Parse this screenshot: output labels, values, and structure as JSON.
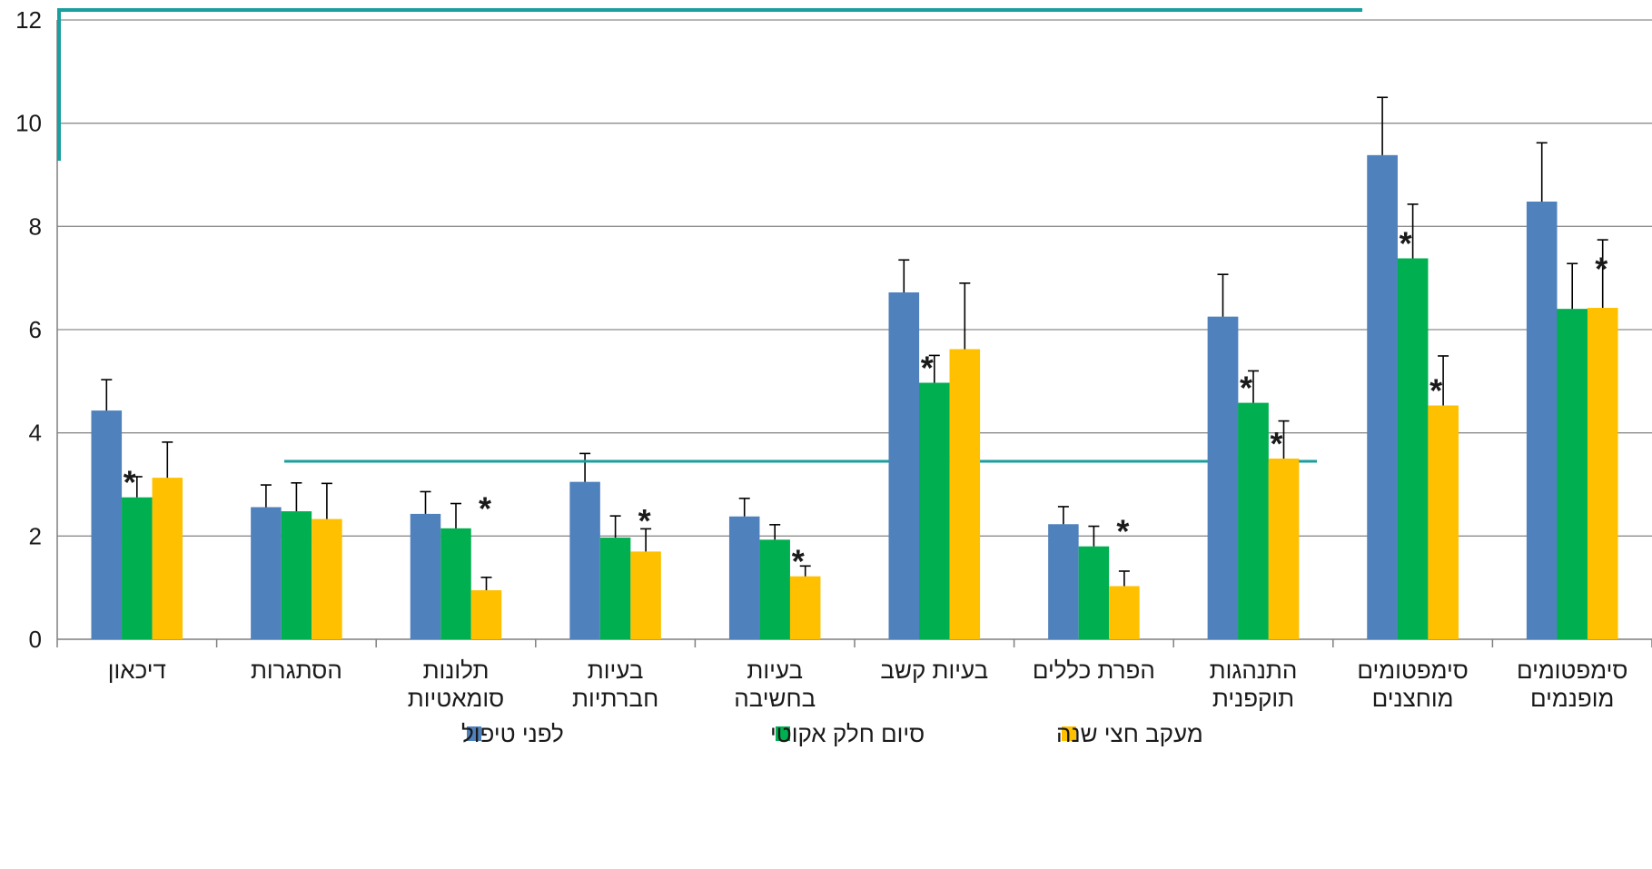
{
  "chart_data": {
    "type": "bar",
    "direction": "rtl",
    "ylim": [
      0,
      12
    ],
    "yticks": [
      0,
      2,
      4,
      6,
      8,
      10,
      12
    ],
    "grid": true,
    "legend_position": "bottom",
    "categories": [
      [
        "דיכאון"
      ],
      [
        "הסתגרות"
      ],
      [
        "תלונות",
        "סומאטיות"
      ],
      [
        "בעיות",
        "חברתיות"
      ],
      [
        "בעיות",
        "בחשיבה"
      ],
      [
        "בעיות קשב"
      ],
      [
        "הפרת כללים"
      ],
      [
        "התנהגות",
        "תוקפנית"
      ],
      [
        "סימפטומים",
        "מוחצנים"
      ],
      [
        "סימפטומים",
        "מופנמים"
      ]
    ],
    "series": [
      {
        "name": "לפני טיפול",
        "color": "#4F81BD",
        "values": [
          4.43,
          2.56,
          2.43,
          3.05,
          2.38,
          6.72,
          2.23,
          6.25,
          9.38,
          8.48
        ],
        "error": [
          0.6,
          0.43,
          0.43,
          0.55,
          0.35,
          0.63,
          0.34,
          0.82,
          1.12,
          1.14
        ],
        "stars": [
          false,
          false,
          false,
          false,
          false,
          false,
          false,
          false,
          false,
          false
        ]
      },
      {
        "name": "סיום חלק אקוטי",
        "color": "#00B050",
        "values": [
          2.75,
          2.48,
          2.15,
          1.97,
          1.93,
          4.97,
          1.8,
          4.58,
          7.38,
          6.4
        ],
        "error": [
          0.4,
          0.55,
          0.48,
          0.42,
          0.29,
          0.53,
          0.39,
          0.62,
          1.05,
          0.88
        ],
        "stars": [
          true,
          false,
          true,
          true,
          false,
          true,
          true,
          true,
          true,
          true
        ]
      },
      {
        "name": "מעקב חצי שנה",
        "color": "#FFC000",
        "values": [
          3.13,
          2.33,
          0.95,
          1.7,
          1.22,
          5.62,
          1.03,
          3.5,
          4.53,
          6.42
        ],
        "error": [
          0.69,
          0.69,
          0.25,
          0.44,
          0.2,
          1.28,
          0.29,
          0.73,
          0.96,
          1.32
        ],
        "stars": [
          false,
          false,
          false,
          false,
          true,
          false,
          false,
          true,
          true,
          false
        ]
      }
    ]
  },
  "annotations": {
    "star_symbol": "*",
    "teal_color": "#1B9E9E"
  }
}
